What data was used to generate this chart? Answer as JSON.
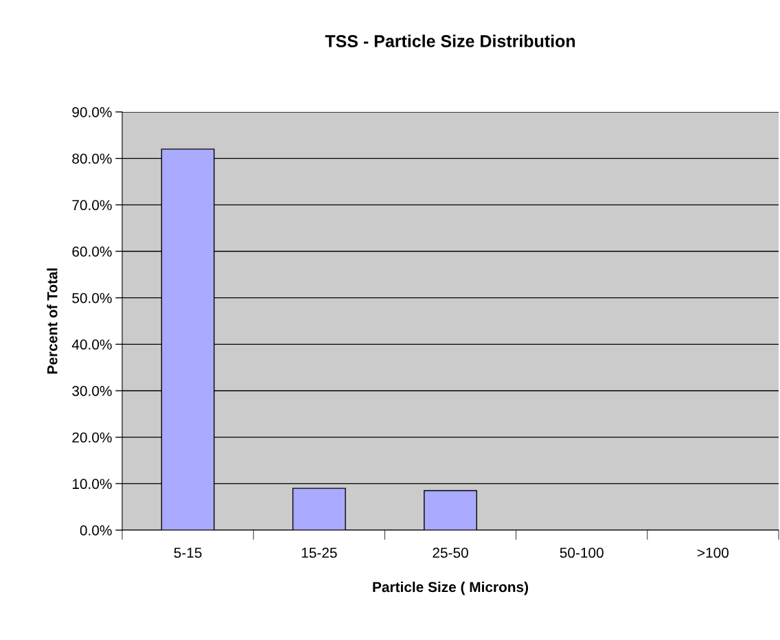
{
  "chart_data": {
    "type": "bar",
    "title": "TSS - Particle Size Distribution",
    "xlabel": "Particle Size ( Microns)",
    "ylabel": "Percent of Total",
    "categories": [
      "5-15",
      "15-25",
      "25-50",
      "50-100",
      ">100"
    ],
    "values": [
      82,
      9,
      8.5,
      null,
      null
    ],
    "color": "#aaaaff",
    "ylim": [
      0,
      90
    ],
    "yticks": [
      {
        "value": 0,
        "label": "0.0%"
      },
      {
        "value": 10,
        "label": "10.0%"
      },
      {
        "value": 20,
        "label": "20.0%"
      },
      {
        "value": 30,
        "label": "30.0%"
      },
      {
        "value": 40,
        "label": "40.0%"
      },
      {
        "value": 50,
        "label": "50.0%"
      },
      {
        "value": 60,
        "label": "60.0%"
      },
      {
        "value": 70,
        "label": "70.0%"
      },
      {
        "value": 80,
        "label": "80.0%"
      },
      {
        "value": 90,
        "label": "90.0%"
      }
    ],
    "grid": "y",
    "legend": false
  }
}
